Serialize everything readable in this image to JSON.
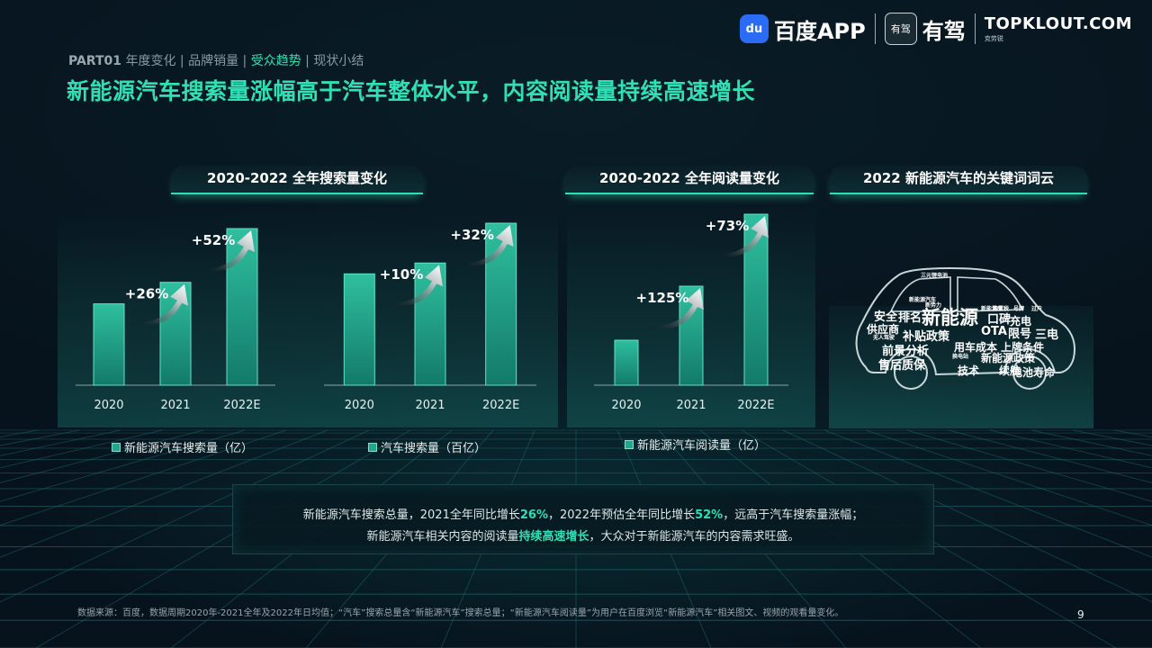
{
  "header": {
    "breadcrumb": {
      "part": "PART01",
      "items": [
        "年度变化",
        "品牌销量",
        "受众趋势",
        "现状小结"
      ],
      "active_index": 2
    },
    "title": "新能源汽车搜索量涨幅高于汽车整体水平，内容阅读量持续高速增长",
    "logos": {
      "baidu_icon_text": "du",
      "baidu_text": "百度APP",
      "youjia_icon_text": "有驾",
      "youjia_text": "有驾",
      "topklout_main": "TOPKLOUT.COM",
      "topklout_sub": "克劳锐"
    }
  },
  "sections": {
    "search_title": "2020-2022 全年搜索量变化",
    "read_title": "2020-2022 全年阅读量变化",
    "cloud_title": "2022 新能源汽车的关键词词云"
  },
  "chart_data": [
    {
      "type": "bar",
      "categories": [
        "2020",
        "2021",
        "2022E"
      ],
      "series": [
        {
          "name": "新能源汽车搜索量（亿）",
          "values": [
            0.53,
            0.67,
            1.02
          ]
        }
      ],
      "growth_labels": [
        "+26%",
        "+52%"
      ],
      "color": "#26a58d"
    },
    {
      "type": "bar",
      "categories": [
        "2020",
        "2021",
        "2022E"
      ],
      "series": [
        {
          "name": "汽车搜索量（百亿）",
          "values": [
            1.23,
            1.35,
            1.79
          ]
        }
      ],
      "growth_labels": [
        "+10%",
        "+32%"
      ],
      "color": "#26a58d"
    },
    {
      "type": "bar",
      "categories": [
        "2020",
        "2021",
        "2022E"
      ],
      "series": [
        {
          "name": "新能源汽车阅读量（亿）",
          "values": [
            0.5,
            1.1,
            1.9
          ]
        }
      ],
      "growth_labels": [
        "+125%",
        "+73%"
      ],
      "color": "#26a58d"
    }
  ],
  "word_cloud": [
    {
      "text": "新能源",
      "size": 21
    },
    {
      "text": "安全",
      "size": 13
    },
    {
      "text": "排名",
      "size": 13
    },
    {
      "text": "口碑",
      "size": 13
    },
    {
      "text": "充电",
      "size": 12
    },
    {
      "text": "供应商",
      "size": 12
    },
    {
      "text": "补贴政策",
      "size": 13
    },
    {
      "text": "OTA",
      "size": 13
    },
    {
      "text": "限号",
      "size": 13
    },
    {
      "text": "三电",
      "size": 13
    },
    {
      "text": "前景分析",
      "size": 13
    },
    {
      "text": "用车成本",
      "size": 12
    },
    {
      "text": "上牌条件",
      "size": 12
    },
    {
      "text": "新能源政策",
      "size": 12
    },
    {
      "text": "售后质保",
      "size": 13
    },
    {
      "text": "技术",
      "size": 12
    },
    {
      "text": "续航",
      "size": 12
    },
    {
      "text": "电池寿命",
      "size": 12
    },
    {
      "text": "三元锂电池",
      "size": 6
    },
    {
      "text": "新势力",
      "size": 6
    },
    {
      "text": "无人驾驶",
      "size": 6
    },
    {
      "text": "换电站",
      "size": 6
    },
    {
      "text": "新能源汽车",
      "size": 6
    },
    {
      "text": "新能源车",
      "size": 6
    },
    {
      "text": "购置税",
      "size": 6
    },
    {
      "text": "号牌",
      "size": 6
    },
    {
      "text": "过户",
      "size": 6
    }
  ],
  "summary": {
    "l1a": "新能源汽车搜索总量，2021全年同比增长",
    "l1b": "26%",
    "l1c": "，2022年预估全年同比增长",
    "l1d": "52%",
    "l1e": "，远高于汽车搜索量涨幅；",
    "l2a": "新能源汽车相关内容的阅读量",
    "l2b": "持续高速增长",
    "l2c": "，大众对于新能源汽车的内容需求旺盛。"
  },
  "footer": {
    "source": "数据来源：百度，数据周期2020年-2021全年及2022年日均值；“汽车”搜索总量含“新能源汽车”搜索总量；“新能源汽车阅读量”为用户在百度浏览“新能源汽车”相关图文、视频的观看量变化。",
    "page": "9"
  }
}
